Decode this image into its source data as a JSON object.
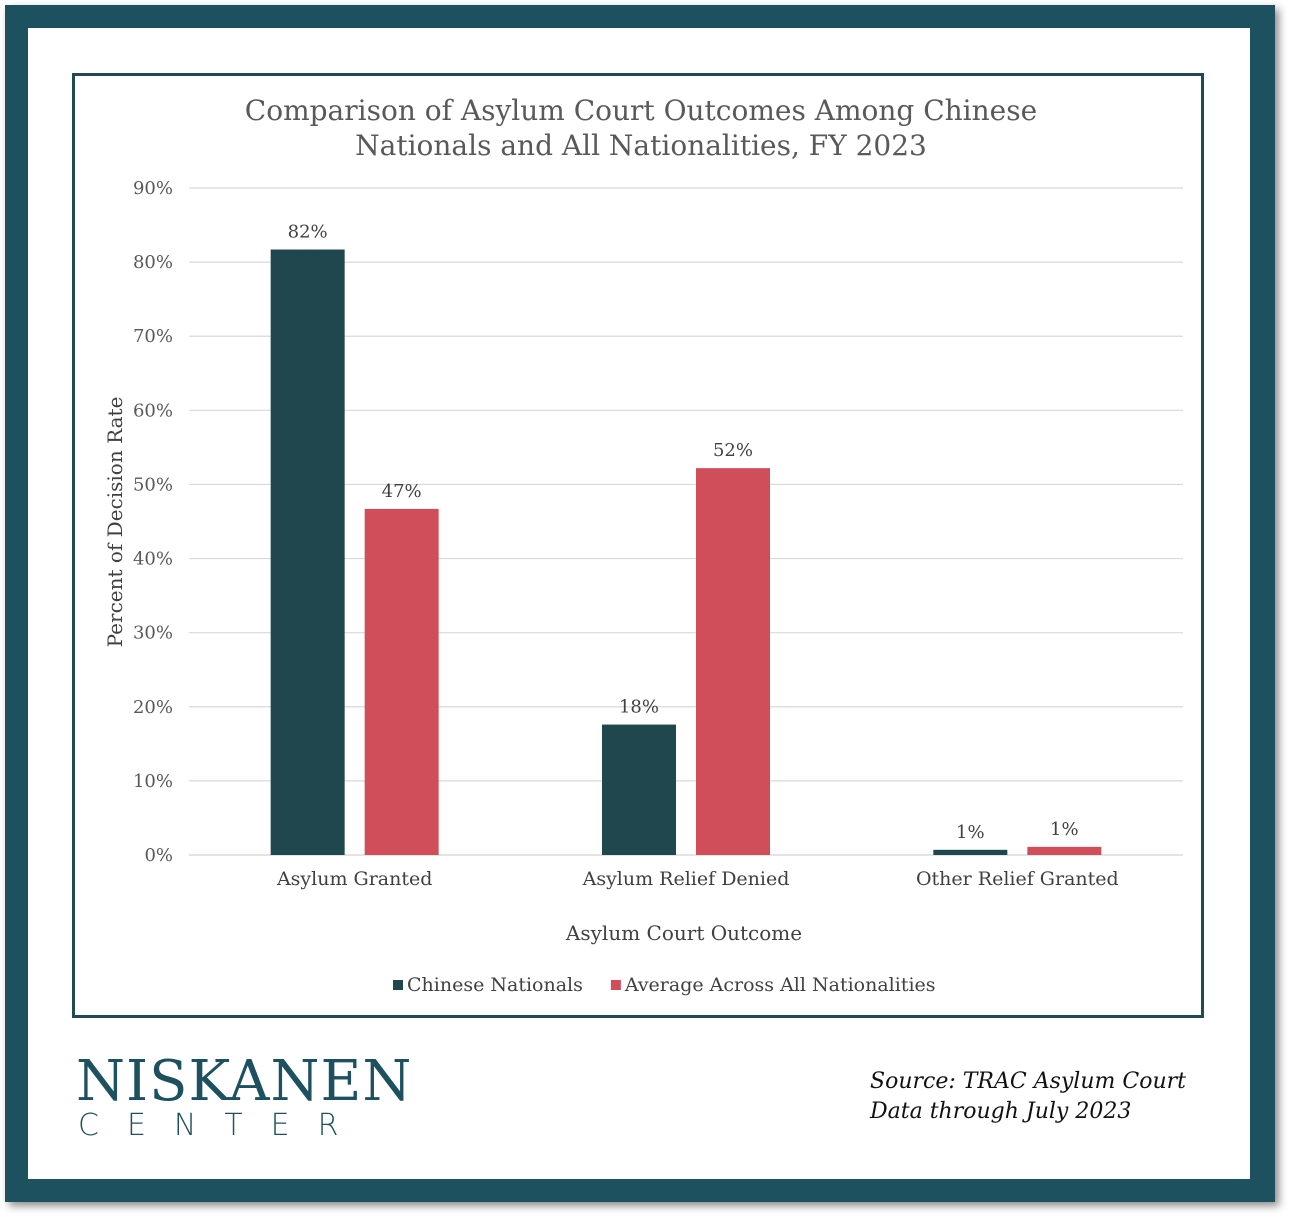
{
  "chart_data": {
    "type": "bar",
    "title_lines": [
      "Comparison of Asylum Court Outcomes Among Chinese",
      "Nationals and All Nationalities, FY 2023"
    ],
    "xlabel": "Asylum Court Outcome",
    "ylabel": "Percent of Decision Rate",
    "ylim": [
      0,
      90
    ],
    "y_ticks": [
      0,
      10,
      20,
      30,
      40,
      50,
      60,
      70,
      80,
      90
    ],
    "y_tick_labels": [
      "0%",
      "10%",
      "20%",
      "30%",
      "40%",
      "50%",
      "60%",
      "70%",
      "80%",
      "90%"
    ],
    "grid": true,
    "legend_position": "bottom",
    "categories": [
      "Asylum Granted",
      "Asylum Relief Denied",
      "Other Relief Granted"
    ],
    "series": [
      {
        "name": "Chinese Nationals",
        "color": "#20474d",
        "values": [
          81.7,
          17.6,
          0.7
        ],
        "labels": [
          "82%",
          "18%",
          "1%"
        ]
      },
      {
        "name": "Average Across All Nationalities",
        "color": "#cf4e5a",
        "values": [
          46.7,
          52.2,
          1.1
        ],
        "labels": [
          "47%",
          "52%",
          "1%"
        ]
      }
    ]
  },
  "branding": {
    "logo_top": "NISKANEN",
    "logo_bottom": "CENTER",
    "frame_color": "#1e5160"
  },
  "source": {
    "line1": "Source: TRAC Asylum Court",
    "line2": "Data through July 2023"
  }
}
